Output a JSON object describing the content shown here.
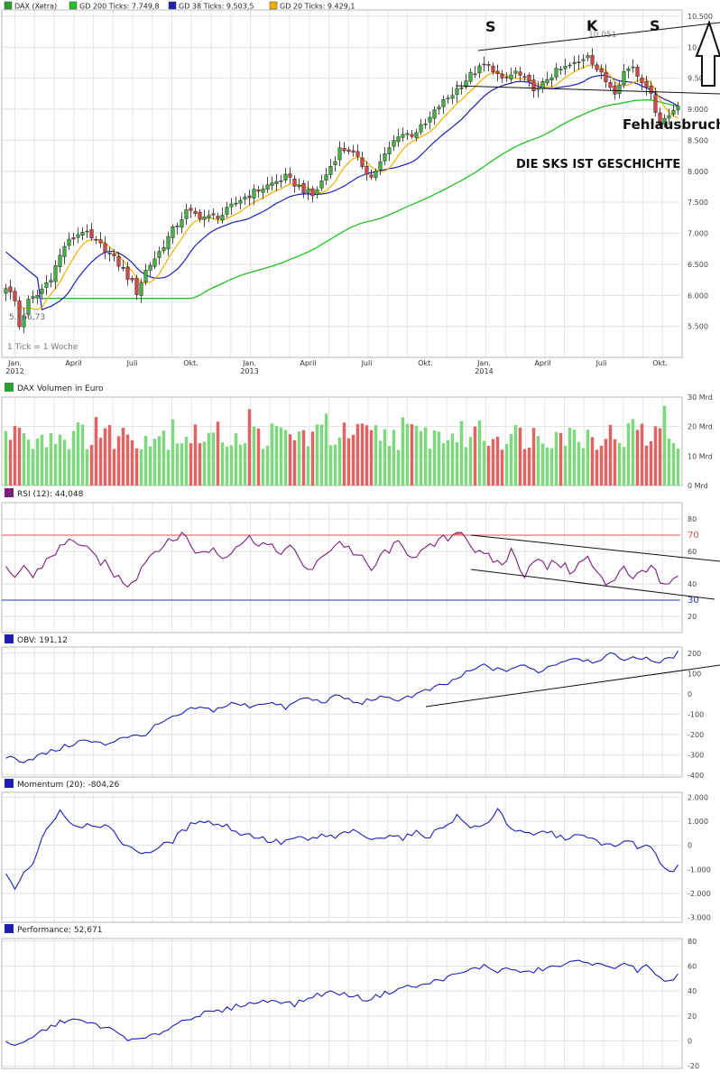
{
  "chart_data": [
    {
      "type": "candlestick",
      "panel": "price",
      "title": "DAX (Xetra)",
      "legend": [
        {
          "label": "DAX (Xetra)",
          "color": "#2e9e2e"
        },
        {
          "label": "GD 200 Ticks: 7.749,8",
          "color": "#22c022"
        },
        {
          "label": "GD 38 Ticks: 9.503,5",
          "color": "#1f1fb5"
        },
        {
          "label": "GD 20 Ticks: 9.429,1",
          "color": "#f0b000"
        }
      ],
      "ylim": [
        5000,
        10600
      ],
      "y_ticks": [
        "10.500",
        "10.000",
        "9.500",
        "9.000",
        "8.500",
        "8.000",
        "7.500",
        "7.000",
        "6.500",
        "6.000",
        "5.500"
      ],
      "y_tick_values": [
        10500,
        10000,
        9500,
        9000,
        8500,
        8000,
        7500,
        7000,
        6500,
        6000,
        5500
      ],
      "x_ticks": [
        {
          "label": "Jan.",
          "sub": "2012",
          "week": 2
        },
        {
          "label": "April",
          "sub": "",
          "week": 15
        },
        {
          "label": "Juli",
          "sub": "",
          "week": 28
        },
        {
          "label": "Okt.",
          "sub": "",
          "week": 41
        },
        {
          "label": "Jan.",
          "sub": "2013",
          "week": 54
        },
        {
          "label": "April",
          "sub": "",
          "week": 67
        },
        {
          "label": "Juli",
          "sub": "",
          "week": 80
        },
        {
          "label": "Okt.",
          "sub": "",
          "week": 93
        },
        {
          "label": "Jan.",
          "sub": "2014",
          "week": 106
        },
        {
          "label": "April",
          "sub": "",
          "week": 119
        },
        {
          "label": "Juli",
          "sub": "",
          "week": 132
        },
        {
          "label": "Okt.",
          "sub": "",
          "week": 145
        }
      ],
      "weeks": 150,
      "close_anchors": [
        [
          0,
          6150
        ],
        [
          2,
          5900
        ],
        [
          3,
          5500
        ],
        [
          5,
          5900
        ],
        [
          7,
          6000
        ],
        [
          10,
          6300
        ],
        [
          13,
          6800
        ],
        [
          17,
          7050
        ],
        [
          19,
          6900
        ],
        [
          22,
          6750
        ],
        [
          25,
          6500
        ],
        [
          28,
          6200
        ],
        [
          29,
          6050
        ],
        [
          31,
          6400
        ],
        [
          34,
          6700
        ],
        [
          37,
          7050
        ],
        [
          40,
          7350
        ],
        [
          42,
          7300
        ],
        [
          45,
          7250
        ],
        [
          48,
          7300
        ],
        [
          52,
          7550
        ],
        [
          56,
          7700
        ],
        [
          59,
          7800
        ],
        [
          62,
          7900
        ],
        [
          66,
          7700
        ],
        [
          68,
          7600
        ],
        [
          71,
          7950
        ],
        [
          74,
          8350
        ],
        [
          76,
          8350
        ],
        [
          79,
          8100
        ],
        [
          81,
          7900
        ],
        [
          84,
          8250
        ],
        [
          87,
          8600
        ],
        [
          90,
          8600
        ],
        [
          93,
          8750
        ],
        [
          96,
          9050
        ],
        [
          99,
          9250
        ],
        [
          103,
          9550
        ],
        [
          106,
          9700
        ],
        [
          108,
          9650
        ],
        [
          110,
          9450
        ],
        [
          113,
          9600
        ],
        [
          116,
          9400
        ],
        [
          118,
          9300
        ],
        [
          120,
          9500
        ],
        [
          122,
          9600
        ],
        [
          125,
          9700
        ],
        [
          127,
          9750
        ],
        [
          129,
          9900
        ],
        [
          131,
          9650
        ],
        [
          133,
          9450
        ],
        [
          135,
          9300
        ],
        [
          137,
          9600
        ],
        [
          139,
          9700
        ],
        [
          140,
          9550
        ],
        [
          142,
          9400
        ],
        [
          144,
          9000
        ],
        [
          145,
          8800
        ],
        [
          147,
          8900
        ],
        [
          149,
          9100
        ]
      ],
      "high_label": "10.051",
      "low_label": "5.366,73",
      "note": "1 Tick = 1 Woche",
      "annotations": [
        {
          "text": "S"
        },
        {
          "text": "K"
        },
        {
          "text": "S"
        },
        {
          "text": "Fehlausbruch"
        },
        {
          "text": "DIE SKS IST GESCHICHTE"
        }
      ]
    },
    {
      "type": "bar",
      "panel": "volume",
      "title": "DAX Volumen in Euro",
      "ylim": [
        0,
        30
      ],
      "y_ticks": [
        "30 Mrd",
        "20 Mrd",
        "10 Mrd",
        "0 Mrd"
      ],
      "y_tick_values": [
        30,
        20,
        10,
        0
      ],
      "colors": {
        "up": "#7ed87e",
        "down": "#e06464"
      }
    },
    {
      "type": "line",
      "panel": "rsi",
      "title": "RSI (12): 44,048",
      "ylim": [
        10,
        90
      ],
      "y_ticks": [
        "80",
        "60",
        "40",
        "20"
      ],
      "y_tick_values": [
        80,
        60,
        40,
        20
      ],
      "levels": [
        {
          "value": 70,
          "label": "70",
          "color": "#e05050"
        },
        {
          "value": 30,
          "label": "30",
          "color": "#3030d0"
        }
      ],
      "anchors": [
        [
          0,
          48
        ],
        [
          2,
          42
        ],
        [
          4,
          52
        ],
        [
          6,
          44
        ],
        [
          9,
          55
        ],
        [
          12,
          62
        ],
        [
          15,
          68
        ],
        [
          17,
          63
        ],
        [
          19,
          58
        ],
        [
          22,
          52
        ],
        [
          24,
          46
        ],
        [
          27,
          40
        ],
        [
          29,
          45
        ],
        [
          31,
          55
        ],
        [
          34,
          63
        ],
        [
          37,
          66
        ],
        [
          39,
          72
        ],
        [
          41,
          64
        ],
        [
          43,
          58
        ],
        [
          46,
          62
        ],
        [
          48,
          56
        ],
        [
          51,
          64
        ],
        [
          54,
          68
        ],
        [
          57,
          65
        ],
        [
          60,
          60
        ],
        [
          63,
          62
        ],
        [
          66,
          52
        ],
        [
          68,
          48
        ],
        [
          71,
          60
        ],
        [
          74,
          66
        ],
        [
          76,
          62
        ],
        [
          79,
          55
        ],
        [
          81,
          48
        ],
        [
          84,
          60
        ],
        [
          87,
          64
        ],
        [
          90,
          58
        ],
        [
          93,
          60
        ],
        [
          96,
          66
        ],
        [
          99,
          70
        ],
        [
          101,
          74
        ],
        [
          103,
          64
        ],
        [
          105,
          58
        ],
        [
          107,
          56
        ],
        [
          110,
          52
        ],
        [
          112,
          60
        ],
        [
          115,
          46
        ],
        [
          117,
          56
        ],
        [
          120,
          50
        ],
        [
          122,
          54
        ],
        [
          125,
          48
        ],
        [
          127,
          52
        ],
        [
          129,
          56
        ],
        [
          131,
          46
        ],
        [
          133,
          40
        ],
        [
          135,
          44
        ],
        [
          137,
          52
        ],
        [
          139,
          42
        ],
        [
          141,
          48
        ],
        [
          143,
          52
        ],
        [
          145,
          40
        ],
        [
          147,
          38
        ],
        [
          149,
          44
        ]
      ]
    },
    {
      "type": "line",
      "panel": "obv",
      "title": "OBV: 191,12",
      "ylim": [
        -410,
        230
      ],
      "y_ticks": [
        "200",
        "100",
        "0",
        "-100",
        "-200",
        "-300",
        "-400"
      ],
      "y_tick_values": [
        200,
        100,
        0,
        -100,
        -200,
        -300,
        -400
      ],
      "anchors": [
        [
          0,
          -310
        ],
        [
          4,
          -330
        ],
        [
          8,
          -300
        ],
        [
          12,
          -270
        ],
        [
          17,
          -230
        ],
        [
          22,
          -250
        ],
        [
          26,
          -210
        ],
        [
          30,
          -210
        ],
        [
          34,
          -150
        ],
        [
          38,
          -110
        ],
        [
          42,
          -70
        ],
        [
          46,
          -80
        ],
        [
          50,
          -50
        ],
        [
          54,
          -60
        ],
        [
          58,
          -40
        ],
        [
          62,
          -70
        ],
        [
          66,
          -20
        ],
        [
          70,
          -40
        ],
        [
          74,
          -10
        ],
        [
          78,
          -50
        ],
        [
          82,
          -20
        ],
        [
          86,
          -30
        ],
        [
          90,
          -10
        ],
        [
          94,
          20
        ],
        [
          98,
          50
        ],
        [
          102,
          100
        ],
        [
          106,
          140
        ],
        [
          110,
          110
        ],
        [
          114,
          140
        ],
        [
          118,
          110
        ],
        [
          122,
          150
        ],
        [
          126,
          180
        ],
        [
          130,
          160
        ],
        [
          134,
          190
        ],
        [
          138,
          170
        ],
        [
          142,
          180
        ],
        [
          145,
          150
        ],
        [
          149,
          200
        ]
      ]
    },
    {
      "type": "line",
      "panel": "momentum",
      "title": "Momentum (20): -804,26",
      "ylim": [
        -3200,
        2200
      ],
      "y_ticks": [
        "2.000",
        "1.000",
        "0",
        "-1.000",
        "-2.000",
        "-3.000"
      ],
      "y_tick_values": [
        2000,
        1000,
        0,
        -1000,
        -2000,
        -3000
      ],
      "anchors": [
        [
          0,
          -1100
        ],
        [
          2,
          -1800
        ],
        [
          4,
          -1200
        ],
        [
          6,
          -800
        ],
        [
          8,
          400
        ],
        [
          10,
          900
        ],
        [
          12,
          1500
        ],
        [
          14,
          1000
        ],
        [
          16,
          800
        ],
        [
          19,
          900
        ],
        [
          22,
          800
        ],
        [
          25,
          300
        ],
        [
          28,
          -200
        ],
        [
          31,
          -300
        ],
        [
          34,
          -100
        ],
        [
          37,
          200
        ],
        [
          40,
          700
        ],
        [
          43,
          1100
        ],
        [
          46,
          900
        ],
        [
          49,
          800
        ],
        [
          52,
          500
        ],
        [
          55,
          400
        ],
        [
          58,
          200
        ],
        [
          61,
          100
        ],
        [
          64,
          300
        ],
        [
          67,
          200
        ],
        [
          70,
          400
        ],
        [
          73,
          300
        ],
        [
          76,
          600
        ],
        [
          79,
          400
        ],
        [
          82,
          200
        ],
        [
          85,
          500
        ],
        [
          88,
          300
        ],
        [
          91,
          500
        ],
        [
          94,
          400
        ],
        [
          97,
          800
        ],
        [
          100,
          1200
        ],
        [
          102,
          900
        ],
        [
          104,
          700
        ],
        [
          107,
          900
        ],
        [
          109,
          1600
        ],
        [
          111,
          900
        ],
        [
          114,
          500
        ],
        [
          117,
          400
        ],
        [
          120,
          600
        ],
        [
          123,
          300
        ],
        [
          126,
          400
        ],
        [
          129,
          300
        ],
        [
          132,
          100
        ],
        [
          135,
          -100
        ],
        [
          138,
          300
        ],
        [
          140,
          -200
        ],
        [
          142,
          0
        ],
        [
          144,
          -400
        ],
        [
          146,
          -900
        ],
        [
          148,
          -1100
        ],
        [
          149,
          -800
        ]
      ]
    },
    {
      "type": "line",
      "panel": "performance",
      "title": "Performance: 52,671",
      "ylim": [
        -22,
        82
      ],
      "y_ticks": [
        "80",
        "60",
        "40",
        "20",
        "0",
        "-20"
      ],
      "y_tick_values": [
        80,
        60,
        40,
        20,
        0,
        -20
      ],
      "anchors": [
        [
          0,
          0
        ],
        [
          3,
          -4
        ],
        [
          5,
          0
        ],
        [
          8,
          8
        ],
        [
          11,
          13
        ],
        [
          14,
          18
        ],
        [
          17,
          15
        ],
        [
          20,
          13
        ],
        [
          24,
          8
        ],
        [
          28,
          0
        ],
        [
          32,
          3
        ],
        [
          36,
          10
        ],
        [
          40,
          18
        ],
        [
          44,
          22
        ],
        [
          48,
          24
        ],
        [
          52,
          29
        ],
        [
          56,
          31
        ],
        [
          60,
          33
        ],
        [
          64,
          29
        ],
        [
          68,
          36
        ],
        [
          72,
          39
        ],
        [
          76,
          37
        ],
        [
          80,
          33
        ],
        [
          84,
          38
        ],
        [
          88,
          43
        ],
        [
          92,
          44
        ],
        [
          96,
          49
        ],
        [
          100,
          53
        ],
        [
          104,
          58
        ],
        [
          106,
          60
        ],
        [
          109,
          56
        ],
        [
          112,
          58
        ],
        [
          115,
          54
        ],
        [
          118,
          57
        ],
        [
          121,
          59
        ],
        [
          124,
          61
        ],
        [
          128,
          65
        ],
        [
          131,
          61
        ],
        [
          134,
          58
        ],
        [
          137,
          63
        ],
        [
          140,
          56
        ],
        [
          142,
          60
        ],
        [
          144,
          52
        ],
        [
          146,
          46
        ],
        [
          149,
          53
        ]
      ]
    }
  ]
}
